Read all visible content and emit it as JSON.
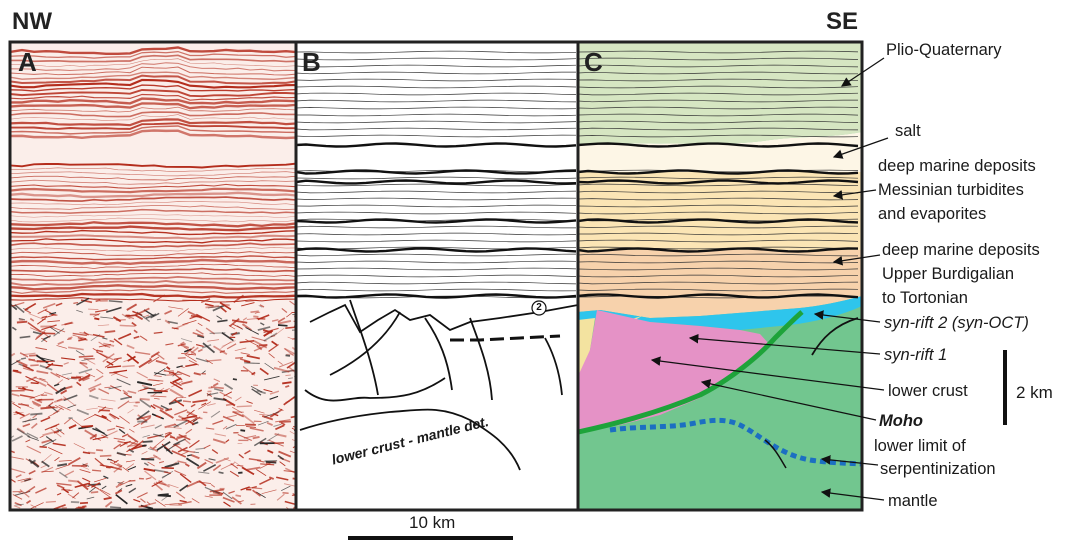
{
  "orientation": {
    "left": "NW",
    "right": "SE"
  },
  "panels": [
    {
      "letter": "A",
      "content": "seismic-image"
    },
    {
      "letter": "B",
      "content": "line-drawing-interpretation"
    },
    {
      "letter": "C",
      "content": "colored-geological-interpretation"
    }
  ],
  "panel_b": {
    "inline_label": "lower crust - mantle det.",
    "marker": "2"
  },
  "legend": [
    {
      "text": "Plio-Quaternary",
      "style": "normal"
    },
    {
      "text": "salt",
      "style": "normal"
    },
    {
      "text": "deep marine deposits",
      "style": "normal"
    },
    {
      "text": "Messinian turbidites",
      "style": "normal"
    },
    {
      "text": "and evaporites",
      "style": "normal"
    },
    {
      "text": "deep marine deposits",
      "style": "normal"
    },
    {
      "text": "Upper Burdigalian",
      "style": "normal"
    },
    {
      "text": "to Tortonian",
      "style": "normal"
    },
    {
      "text": "syn-rift 2 (syn-OCT)",
      "style": "italic"
    },
    {
      "text": "syn-rift 1",
      "style": "italic"
    },
    {
      "text": "lower crust",
      "style": "normal"
    },
    {
      "text": "Moho",
      "style": "bolditalic"
    },
    {
      "text": "lower limit of",
      "style": "normal"
    },
    {
      "text": "serpentinization",
      "style": "normal"
    },
    {
      "text": "mantle",
      "style": "normal"
    }
  ],
  "scales": {
    "vertical": "2 km",
    "horizontal": "10 km"
  },
  "colors": {
    "plio_quaternary": "#d6e6c2",
    "salt": "#fdf6e6",
    "messinian": "#fbe5b5",
    "burdigalian_tortonian": "#f7d2ac",
    "syn_rift_2": "#2ec5ec",
    "syn_rift_1": "#f3e3a0",
    "lower_crust": "#e592c6",
    "moho": "#1ea33a",
    "serpentinization": "#1c6fc2",
    "mantle": "#72c68f",
    "seismic_red": "#b32a1a"
  }
}
